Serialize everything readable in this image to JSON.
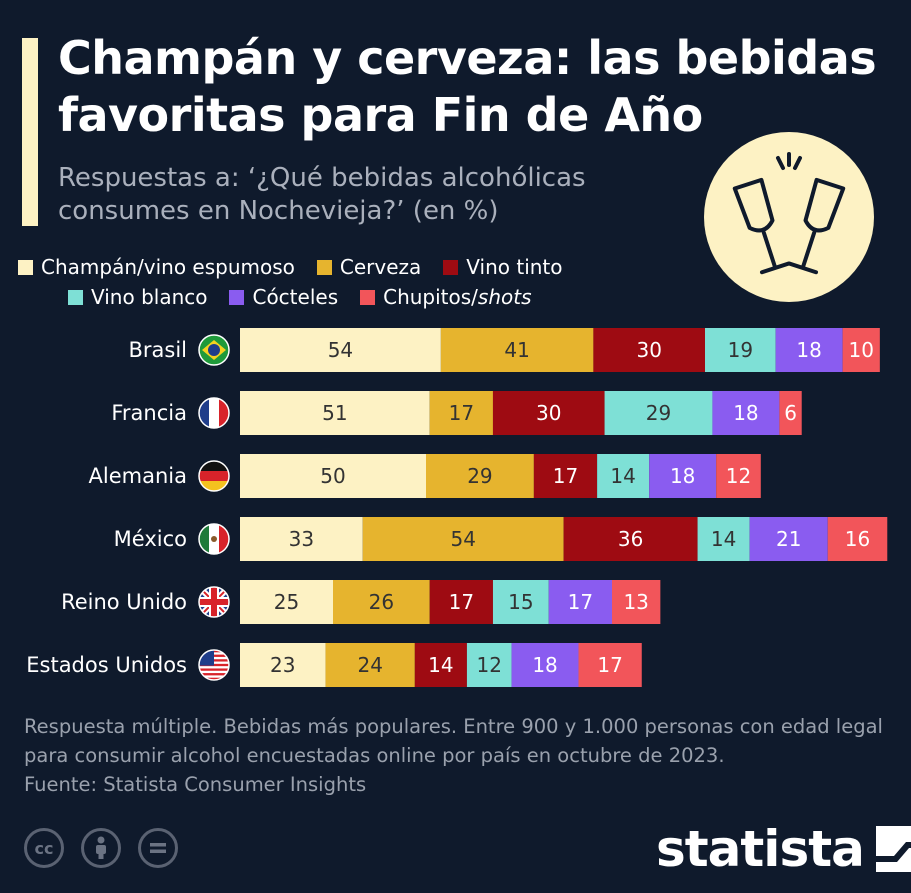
{
  "header": {
    "title": "Champán y cerveza: las bebidas favoritas para Fin de Año",
    "subtitle": "Respuestas a: ‘¿Qué bebidas alcohólicas consumes en Nochevieja?’ (en %)"
  },
  "icons": {
    "badge": "champagne-toast-icon",
    "cc": "creative-commons-icon",
    "by": "attribution-icon",
    "nd": "no-derivatives-icon",
    "logo": "statista-logo-icon"
  },
  "legend": {
    "row1": [
      {
        "label": "Champán/vino espumoso",
        "color": "#fdf2c4"
      },
      {
        "label": "Cerveza",
        "color": "#e6b42e"
      },
      {
        "label": "Vino tinto",
        "color": "#9e0b12"
      }
    ],
    "row2": [
      {
        "label": "Vino blanco",
        "color": "#7ee0d6"
      },
      {
        "label": "Cócteles",
        "color": "#8a5cf0"
      },
      {
        "label_plain": "Chupitos/",
        "label_italic": "shots",
        "color": "#f2555a"
      }
    ]
  },
  "chart_data": {
    "type": "bar",
    "stacked": true,
    "orientation": "horizontal",
    "categories": [
      "Brasil",
      "Francia",
      "Alemania",
      "México",
      "Reino Unido",
      "Estados Unidos"
    ],
    "series": [
      {
        "name": "Champán/vino espumoso",
        "color": "#fdf2c4",
        "label_color": "#333333",
        "values": [
          54,
          51,
          50,
          33,
          25,
          23
        ]
      },
      {
        "name": "Cerveza",
        "color": "#e6b42e",
        "label_color": "#333333",
        "values": [
          41,
          17,
          29,
          54,
          26,
          24
        ]
      },
      {
        "name": "Vino tinto",
        "color": "#9e0b12",
        "label_color": "#ffffff",
        "values": [
          30,
          30,
          17,
          36,
          17,
          14
        ]
      },
      {
        "name": "Vino blanco",
        "color": "#7ee0d6",
        "label_color": "#333333",
        "values": [
          19,
          29,
          14,
          14,
          15,
          12
        ]
      },
      {
        "name": "Cócteles",
        "color": "#8a5cf0",
        "label_color": "#ffffff",
        "values": [
          18,
          18,
          18,
          21,
          17,
          18
        ]
      },
      {
        "name": "Chupitos/shots",
        "color": "#f2555a",
        "label_color": "#ffffff",
        "values": [
          10,
          6,
          12,
          16,
          13,
          17
        ]
      }
    ],
    "flags": [
      "flag-brazil-icon",
      "flag-france-icon",
      "flag-germany-icon",
      "flag-mexico-icon",
      "flag-uk-icon",
      "flag-usa-icon"
    ]
  },
  "footer": {
    "note": "Respuesta múltiple. Bebidas más populares. Entre 900 y 1.000 personas con edad legal para consumir alcohol encuestadas online por país en octubre de 2023.",
    "source": "Fuente: Statista Consumer Insights",
    "logo_text": "statista"
  }
}
